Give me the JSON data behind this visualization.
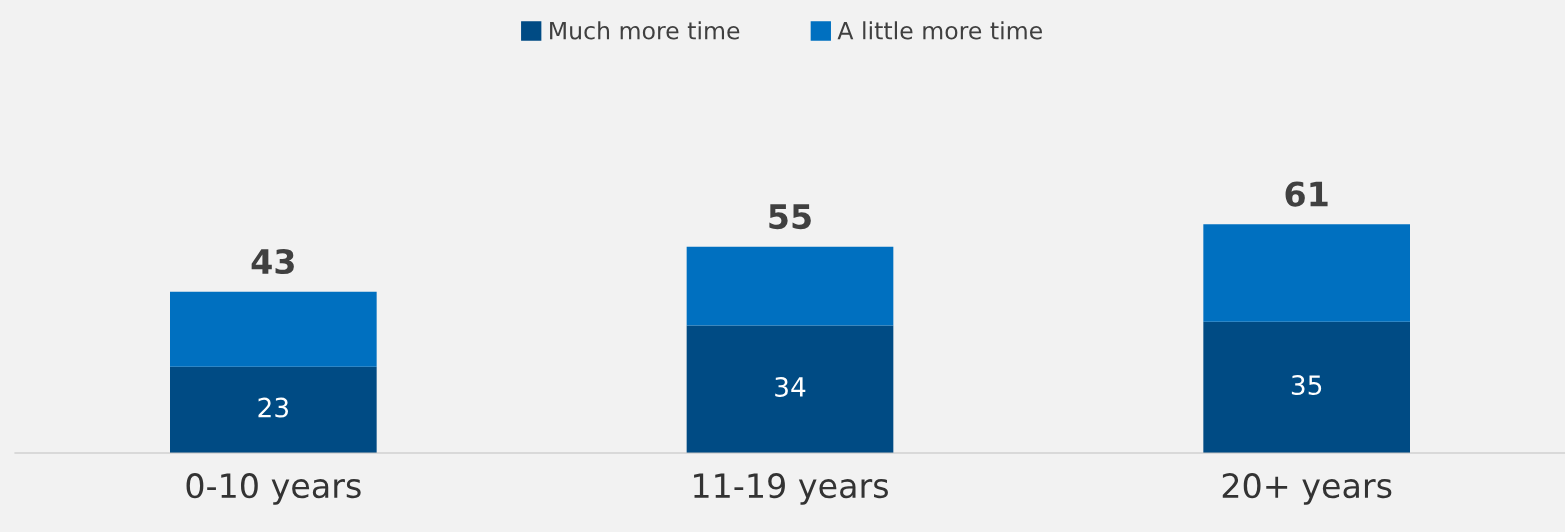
{
  "chart_data": {
    "type": "bar",
    "stacked": true,
    "categories": [
      "0-10 years",
      "11-19 years",
      "20+ years"
    ],
    "series": [
      {
        "name": "Much more time",
        "color": "#004b84",
        "values": [
          23,
          34,
          35
        ],
        "value_labels": [
          "23",
          "34",
          "35"
        ]
      },
      {
        "name": "A little more time",
        "color": "#0070c0",
        "values": [
          20,
          21,
          26
        ]
      }
    ],
    "totals": [
      "43",
      "55",
      "61"
    ],
    "tick_labels": "x",
    "grid": false,
    "legend": "top"
  }
}
